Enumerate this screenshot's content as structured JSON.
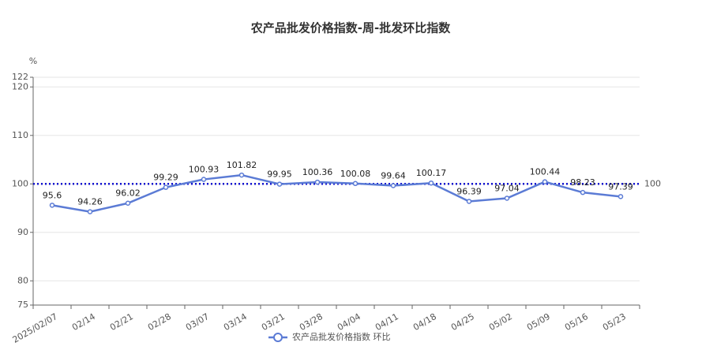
{
  "chart_data": {
    "type": "line",
    "title": "农产品批发价格指数-周-批发环比指数",
    "y_unit": "%",
    "categories": [
      "2025/02/07",
      "02/14",
      "02/21",
      "02/28",
      "03/07",
      "03/14",
      "03/21",
      "03/28",
      "04/04",
      "04/11",
      "04/18",
      "04/25",
      "05/02",
      "05/09",
      "05/16",
      "05/23"
    ],
    "series": [
      {
        "name": "农产品批发价格指数 环比",
        "color": "#5b7bd5",
        "values": [
          95.6,
          94.26,
          96.02,
          99.29,
          100.93,
          101.82,
          99.95,
          100.36,
          100.08,
          99.64,
          100.17,
          96.39,
          97.04,
          100.44,
          98.23,
          97.39
        ]
      }
    ],
    "reference_line": 100,
    "reference_color": "#1010d0",
    "ylim": [
      75,
      122
    ],
    "yticks": [
      75,
      80,
      90,
      100,
      110,
      120,
      122
    ],
    "grid": true
  }
}
